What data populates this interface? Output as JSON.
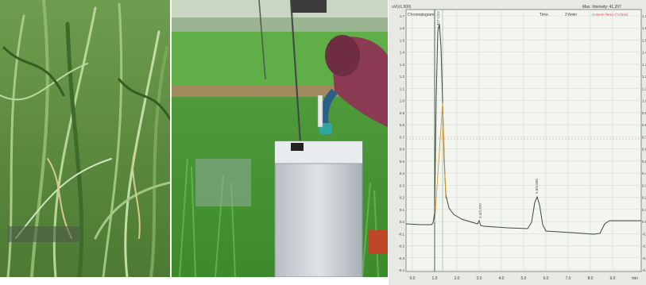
{
  "panels": {
    "rice_plants": {
      "description_icon": "rice-plant-photo"
    },
    "field_sampling": {
      "description_icon": "field-chamber-photo"
    },
    "chromatogram": {
      "header_left": "Chromatogram",
      "header_right": "Max. Intensity: 41,207",
      "header_time": "Time",
      "header_min": "2.6min",
      "header_temp_label": "Column Temp (°C/min)",
      "y_axis_top_label": "uV(x1,000)",
      "peak_labels": [
        "1.927 CO2",
        "3.4/3.370",
        "5.8/5.800"
      ],
      "x_tick_labels": [
        "0.0",
        "1.0",
        "2.0",
        "3.0",
        "4.0",
        "5.0",
        "6.0",
        "7.0",
        "8.0",
        "9.0",
        "min"
      ],
      "y_tick_labels": [
        "1.7",
        "1.6",
        "1.5",
        "1.4",
        "1.3",
        "1.2",
        "1.1",
        "1.0",
        "0.9",
        "0.8",
        "0.7",
        "0.6",
        "0.5",
        "0.4",
        "0.3",
        "0.2",
        "0.1",
        "0.0",
        "-0.1",
        "-0.2",
        "-0.3",
        "-0.4"
      ]
    }
  }
}
